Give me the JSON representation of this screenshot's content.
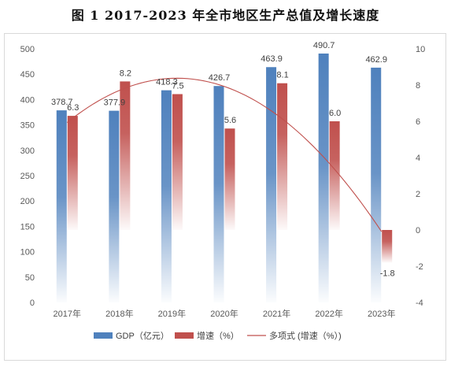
{
  "chart_data": {
    "type": "bar",
    "title": "图 1    2017-2023 年全市地区生产总值及增长速度",
    "categories": [
      "2017年",
      "2018年",
      "2019年",
      "2020年",
      "2021年",
      "2022年",
      "2023年"
    ],
    "series": [
      {
        "name": "GDP（亿元）",
        "axis": "left",
        "color": "#4f81bd",
        "values": [
          378.7,
          377.9,
          418.3,
          426.7,
          463.9,
          490.7,
          462.9
        ],
        "labels": [
          "378.7",
          "377.9",
          "418.3",
          "426.7",
          "463.9",
          "490.7",
          "462.9"
        ]
      },
      {
        "name": "增速（%）",
        "axis": "right",
        "color": "#c0504d",
        "values": [
          6.3,
          8.2,
          7.5,
          5.6,
          8.1,
          6.0,
          -1.8
        ],
        "labels": [
          "6.3",
          "8.2",
          "7.5",
          "5.6",
          "8.1",
          "6.0",
          "-1.8"
        ]
      }
    ],
    "trendline": {
      "name": "多项式 (增速（%）)",
      "type": "polynomial",
      "order": 2,
      "of_series": "增速（%）",
      "color": "#c0504d"
    },
    "y_left": {
      "ylim": [
        0,
        500
      ],
      "ticks": [
        "0",
        "50",
        "100",
        "150",
        "200",
        "250",
        "300",
        "350",
        "400",
        "450",
        "500"
      ]
    },
    "y_right": {
      "ylim": [
        -4,
        10
      ],
      "ticks": [
        "-4",
        "-2",
        "0",
        "2",
        "4",
        "6",
        "8",
        "10"
      ]
    },
    "grid": false,
    "legend": "bottom"
  }
}
